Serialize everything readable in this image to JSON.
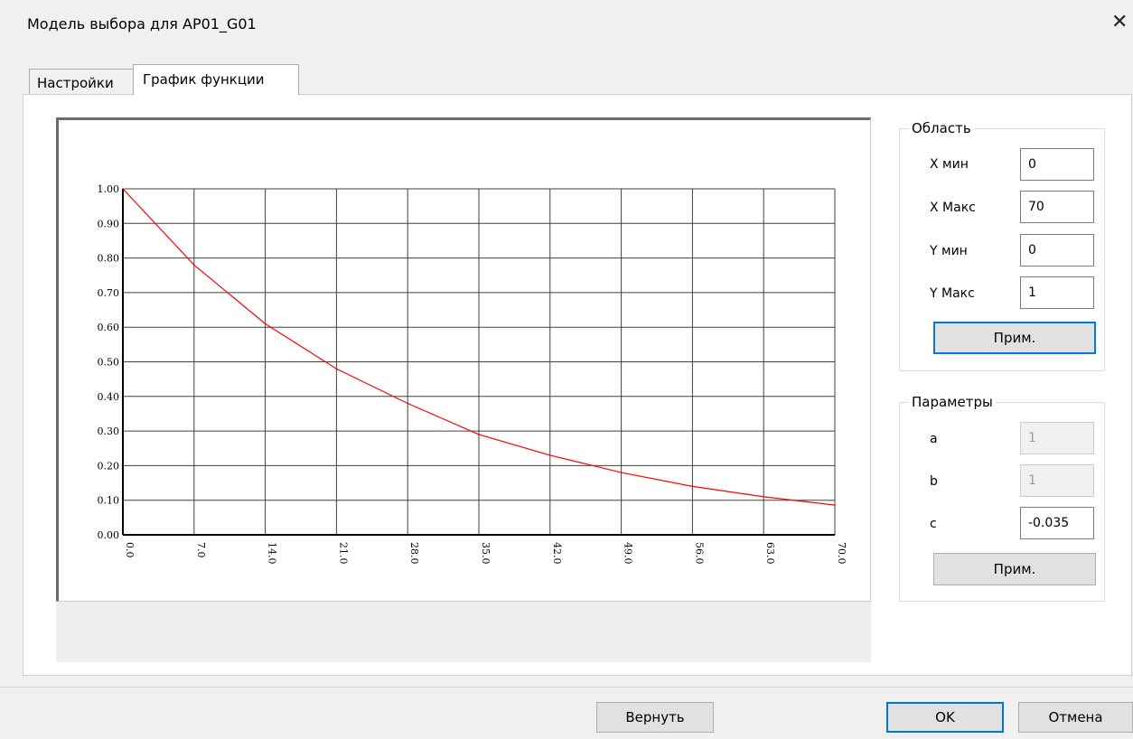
{
  "window": {
    "title": "Модель выбора для AP01_G01",
    "close_glyph": "✕"
  },
  "tabs": [
    {
      "label": "Настройки",
      "active": false
    },
    {
      "label": "График функции",
      "active": true
    }
  ],
  "area": {
    "legend": "Область",
    "fields": [
      {
        "label": "X мин",
        "value": "0"
      },
      {
        "label": "X Макс",
        "value": "70"
      },
      {
        "label": "Y мин",
        "value": "0"
      },
      {
        "label": "Y Макс",
        "value": "1"
      }
    ],
    "apply_label": "Прим."
  },
  "params": {
    "legend": "Параметры",
    "fields": [
      {
        "label": "a",
        "value": "1",
        "disabled": true
      },
      {
        "label": "b",
        "value": "1",
        "disabled": true
      },
      {
        "label": "c",
        "value": "-0.035",
        "disabled": false
      }
    ],
    "apply_label": "Прим."
  },
  "footer": {
    "revert_label": "Вернуть",
    "ok_label": "OK",
    "cancel_label": "Отмена"
  },
  "chart_data": {
    "type": "line",
    "title": "",
    "xlabel": "",
    "ylabel": "",
    "xlim": [
      0,
      70
    ],
    "ylim": [
      0,
      1
    ],
    "x_ticks": [
      "0.0",
      "7.0",
      "14.0",
      "21.0",
      "28.0",
      "35.0",
      "42.0",
      "49.0",
      "56.0",
      "63.0",
      "70.0"
    ],
    "y_ticks": [
      "0.00",
      "0.10",
      "0.20",
      "0.30",
      "0.40",
      "0.50",
      "0.60",
      "0.70",
      "0.80",
      "0.90",
      "1.00"
    ],
    "grid": true,
    "series": [
      {
        "color": "#ff0000",
        "x": [
          0,
          7,
          14,
          21,
          28,
          35,
          42,
          49,
          56,
          63,
          70
        ],
        "y": [
          1.0,
          0.78,
          0.61,
          0.48,
          0.38,
          0.29,
          0.23,
          0.18,
          0.14,
          0.11,
          0.086
        ]
      }
    ]
  }
}
